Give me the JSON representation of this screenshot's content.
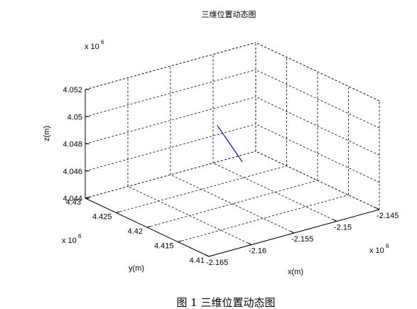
{
  "chart_data": {
    "type": "line",
    "title": "三维位置动态图",
    "xlabel": "x(m)",
    "ylabel": "y(m)",
    "zlabel": "z(m)",
    "x_exponent": "x 10",
    "x_exponent_power": "6",
    "y_exponent": "x 10",
    "y_exponent_power": "6",
    "z_exponent": "x 10",
    "z_exponent_power": "6",
    "xlim": [
      -2.165,
      -2.145
    ],
    "ylim": [
      4.41,
      4.43
    ],
    "zlim": [
      4.044,
      4.052
    ],
    "x_ticks": [
      -2.165,
      -2.16,
      -2.155,
      -2.15,
      -2.145
    ],
    "x_tick_labels": [
      "-2.165",
      "-2.16",
      "-2.155",
      "-2.15",
      "-2.145"
    ],
    "y_ticks": [
      4.41,
      4.415,
      4.42,
      4.425,
      4.43
    ],
    "y_tick_labels": [
      "4.41",
      "4.415",
      "4.42",
      "4.425",
      "4.43"
    ],
    "z_ticks": [
      4.044,
      4.046,
      4.048,
      4.05,
      4.052
    ],
    "z_tick_labels": [
      "4.044",
      "4.046",
      "4.048",
      "4.05",
      "4.052"
    ],
    "grid": true,
    "series": [
      {
        "color": "#0000cc",
        "points": [
          {
            "x": -2.1538,
            "y": 4.4241,
            "z": 4.0487
          },
          {
            "x": -2.1547,
            "y": 4.4188,
            "z": 4.0473
          }
        ]
      }
    ]
  },
  "caption": "图 1  三维位置动态图"
}
